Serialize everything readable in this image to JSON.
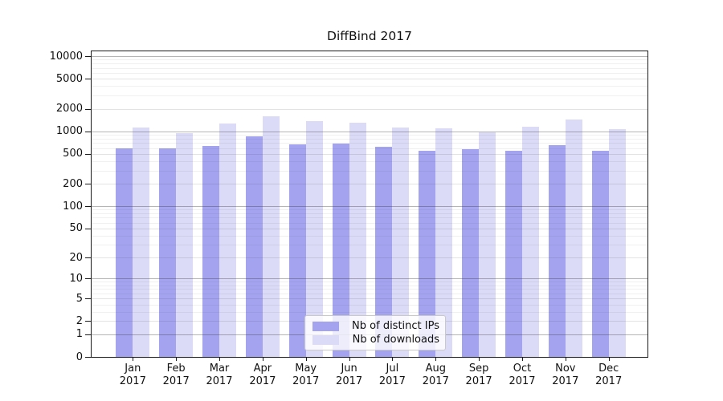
{
  "chart_data": {
    "type": "bar",
    "title": "DiffBind 2017",
    "categories": [
      "Jan",
      "Feb",
      "Mar",
      "Apr",
      "May",
      "Jun",
      "Jul",
      "Aug",
      "Sep",
      "Oct",
      "Nov",
      "Dec"
    ],
    "category_year": "2017",
    "series": [
      {
        "name": "Nb of distinct IPs",
        "color": "#a3a3f0",
        "values": [
          595,
          595,
          640,
          850,
          675,
          690,
          620,
          550,
          580,
          550,
          655,
          550
        ]
      },
      {
        "name": "Nb of downloads",
        "color": "#dbdbf8",
        "values": [
          1120,
          945,
          1270,
          1570,
          1370,
          1300,
          1120,
          1095,
          960,
          1150,
          1435,
          1080
        ]
      }
    ],
    "y_axis": {
      "scale": "log10(1+x)",
      "ticks": [
        0,
        1,
        2,
        5,
        10,
        20,
        50,
        100,
        200,
        500,
        1000,
        2000,
        5000,
        10000
      ],
      "min": 0,
      "max": 10000
    },
    "x_axis": {
      "tick_format": "month over year, two lines"
    },
    "grid": true,
    "legend_position": "bottom-center"
  }
}
